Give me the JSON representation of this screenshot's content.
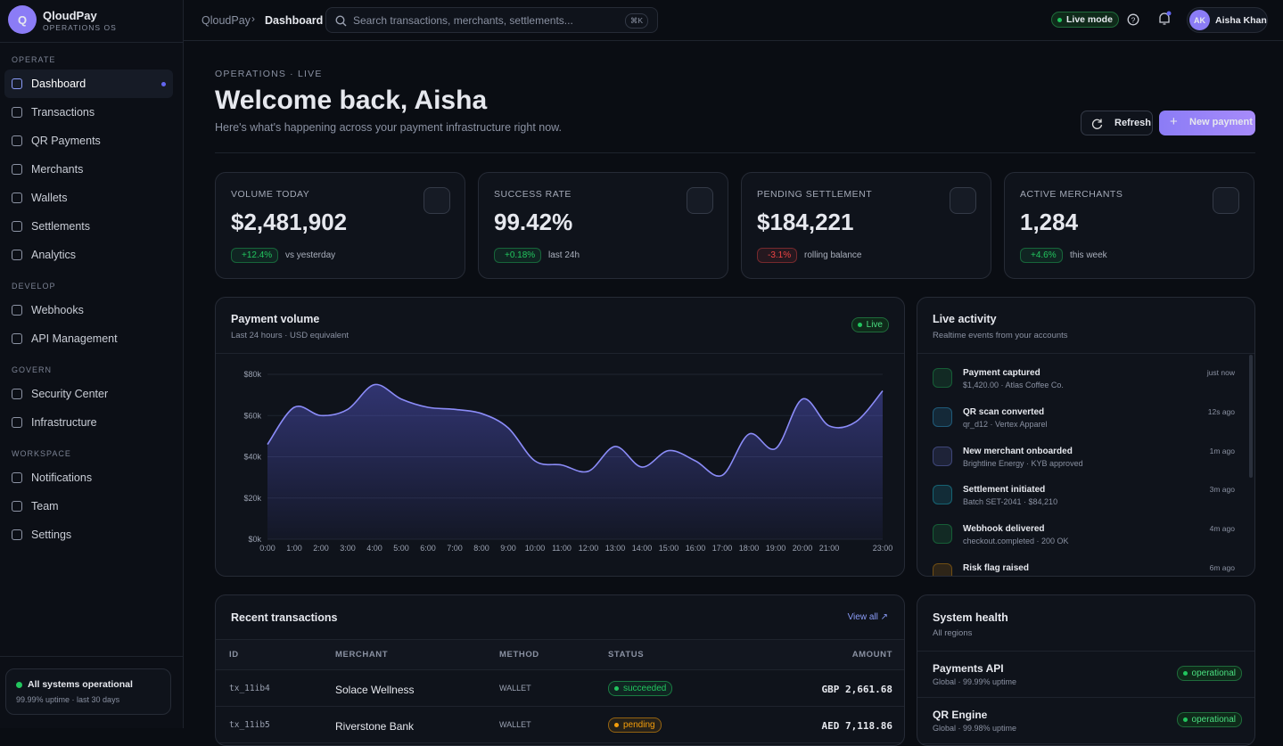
{
  "brand": {
    "initial": "Q",
    "name": "QloudPay",
    "subtitle": "OPERATIONS OS"
  },
  "nav": [
    {
      "title": "OPERATE",
      "items": [
        "Dashboard",
        "Transactions",
        "QR Payments",
        "Merchants",
        "Wallets",
        "Settlements",
        "Analytics"
      ]
    },
    {
      "title": "DEVELOP",
      "items": [
        "Webhooks",
        "API Management"
      ]
    },
    {
      "title": "GOVERN",
      "items": [
        "Security Center",
        "Infrastructure"
      ]
    },
    {
      "title": "WORKSPACE",
      "items": [
        "Notifications",
        "Team",
        "Settings"
      ]
    }
  ],
  "system_status": {
    "title": "All systems operational",
    "detail": "99.99% uptime · last 30 days"
  },
  "topbar": {
    "breadcrumb": [
      "QloudPay",
      "Dashboard"
    ],
    "search_placeholder": "Search transactions, merchants, settlements...",
    "shortcut": "⌘K",
    "mode": "Live mode",
    "user_initials": "AK",
    "user_name": "Aisha Khan"
  },
  "header": {
    "eyebrow": "OPERATIONS · LIVE",
    "title": "Welcome back, Aisha",
    "subtitle": "Here's what's happening across your payment infrastructure right now.",
    "buttons": [
      "Refresh",
      "New payment"
    ]
  },
  "kpis": [
    {
      "label": "VOLUME TODAY",
      "value": "$2,481,902",
      "delta": "+12.4%",
      "note": "vs yesterday",
      "color": "#22c55e"
    },
    {
      "label": "SUCCESS RATE",
      "value": "99.42%",
      "delta": "+0.18%",
      "note": "last 24h",
      "color": "#22c55e"
    },
    {
      "label": "PENDING SETTLEMENT",
      "value": "$184,221",
      "delta": "-3.1%",
      "note": "rolling balance",
      "color": "#ef4444"
    },
    {
      "label": "ACTIVE MERCHANTS",
      "value": "1,284",
      "delta": "+4.6%",
      "note": "this week",
      "color": "#22c55e"
    }
  ],
  "chart_data": {
    "type": "area",
    "title": "Payment volume",
    "subtitle": "Last 24 hours · USD equivalent",
    "badge": "Live",
    "color": "#8b8cf8",
    "categories": [
      "0:00",
      "1:00",
      "2:00",
      "3:00",
      "4:00",
      "5:00",
      "6:00",
      "7:00",
      "8:00",
      "9:00",
      "10:00",
      "11:00",
      "12:00",
      "13:00",
      "14:00",
      "15:00",
      "16:00",
      "17:00",
      "18:00",
      "19:00",
      "20:00",
      "21:00",
      null,
      "23:00"
    ],
    "values": [
      46000,
      64000,
      60000,
      63000,
      75000,
      68000,
      64000,
      63000,
      61000,
      54000,
      38000,
      36000,
      33000,
      45000,
      35000,
      43000,
      38000,
      31000,
      51000,
      44000,
      68000,
      55000,
      57000,
      72000
    ],
    "ylim": [
      0,
      80000
    ],
    "yticks": [
      {
        "value": 0,
        "label": "$0k"
      },
      {
        "value": 20000,
        "label": "$20k"
      },
      {
        "value": 40000,
        "label": "$40k"
      },
      {
        "value": 60000,
        "label": "$60k"
      },
      {
        "value": 80000,
        "label": "$80k"
      }
    ],
    "grid": true
  },
  "activity": {
    "title": "Live activity",
    "subtitle": "Realtime events from your accounts",
    "items": [
      {
        "title": "Payment captured",
        "detail": "$1,420.00 · Atlas Coffee Co.",
        "time": "just now",
        "color": "#22c55e"
      },
      {
        "title": "QR scan converted",
        "detail": "qr_d12 · Vertex Apparel",
        "time": "12s ago",
        "color": "#38bdf8"
      },
      {
        "title": "New merchant onboarded",
        "detail": "Brightline Energy · KYB approved",
        "time": "1m ago",
        "color": "#818cf8"
      },
      {
        "title": "Settlement initiated",
        "detail": "Batch SET-2041 · $84,210",
        "time": "3m ago",
        "color": "#22d3ee"
      },
      {
        "title": "Webhook delivered",
        "detail": "checkout.completed · 200 OK",
        "time": "4m ago",
        "color": "#22c55e"
      },
      {
        "title": "Risk flag raised",
        "time": "6m ago",
        "color": "#f59e0b"
      }
    ]
  },
  "transactions": {
    "title": "Recent transactions",
    "link": "View all ↗",
    "columns": [
      "ID",
      "MERCHANT",
      "METHOD",
      "STATUS",
      "AMOUNT"
    ],
    "rows": [
      {
        "cells": [
          "tx_11ib4",
          "Solace Wellness",
          "WALLET",
          "succeeded",
          "GBP 2,661.68"
        ],
        "color": "#22c55e"
      },
      {
        "cells": [
          "tx_11ib5",
          "Riverstone Bank",
          "WALLET",
          "pending",
          "AED 7,118.86"
        ],
        "color": "#f59e0b"
      }
    ]
  },
  "health": {
    "title": "System health",
    "subtitle": "All regions",
    "services": [
      {
        "name": "Payments API",
        "detail": "Global · 99.99% uptime",
        "status": "operational"
      },
      {
        "name": "QR Engine",
        "detail": "Global · 99.98% uptime",
        "status": "operational"
      }
    ]
  }
}
